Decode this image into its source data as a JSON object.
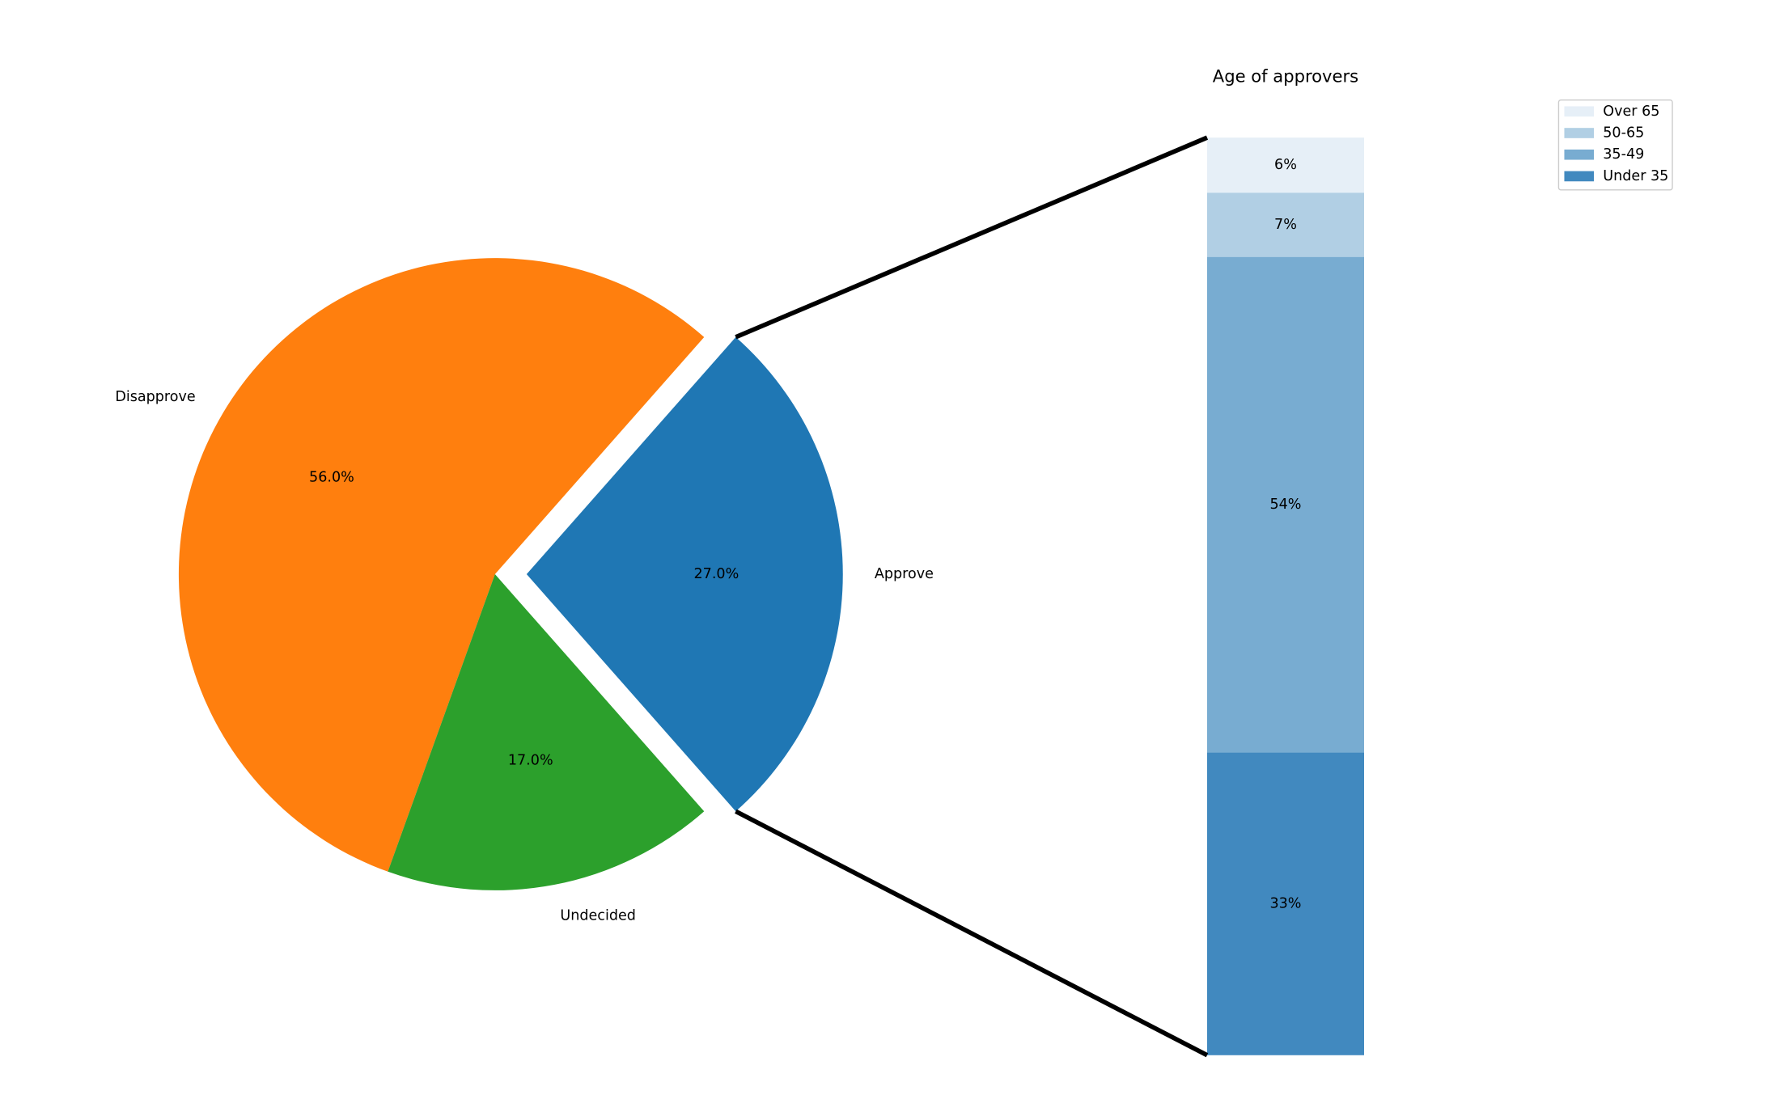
{
  "chart_data": [
    {
      "type": "pie",
      "categories": [
        "Approve",
        "Disapprove",
        "Undecided"
      ],
      "values": [
        27,
        56,
        17
      ],
      "value_labels": [
        "27.0%",
        "56.0%",
        "17.0%"
      ],
      "colors": [
        "#1f77b4",
        "#ff7f0e",
        "#2ca02c"
      ]
    },
    {
      "type": "stacked-bar",
      "title": "Age of approvers",
      "legend": "upper right",
      "series": [
        {
          "name": "Under 35",
          "color": "#4189bf",
          "values": [
            33
          ],
          "value_labels": [
            "33%"
          ]
        },
        {
          "name": "35-49",
          "color": "#78acd1",
          "values": [
            54
          ],
          "value_labels": [
            "54%"
          ]
        },
        {
          "name": "50-65",
          "color": "#b1cfe4",
          "values": [
            7
          ],
          "value_labels": [
            "7%"
          ]
        },
        {
          "name": "Over 65",
          "color": "#e6eff7",
          "values": [
            6
          ],
          "value_labels": [
            "6%"
          ]
        }
      ]
    }
  ]
}
